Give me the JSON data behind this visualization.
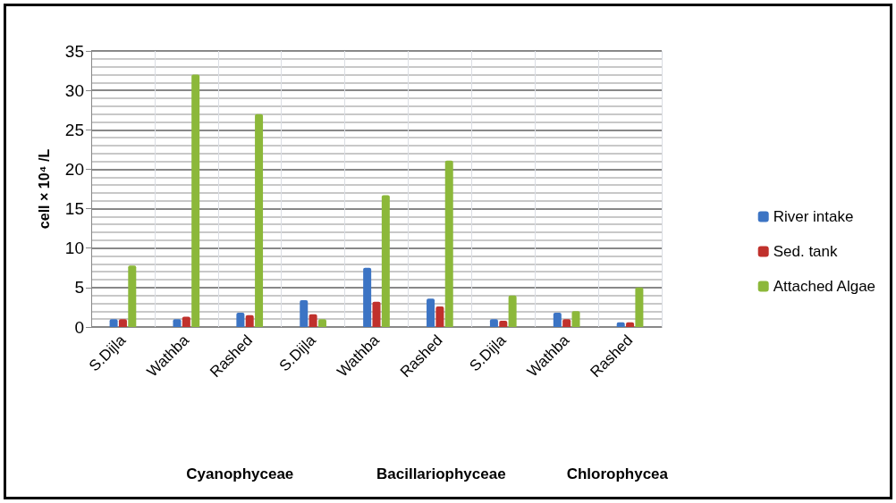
{
  "chart_data": {
    "type": "bar",
    "ylabel": "cell × 10⁴ /L",
    "categories": [
      "S.Dijla",
      "Wathba",
      "Rashed",
      "S.Dijla",
      "Wathba",
      "Rashed",
      "S.Dijla",
      "Wathba",
      "Rashed"
    ],
    "series": [
      {
        "name": "River intake",
        "color": "#3c74c4",
        "values": [
          1,
          1,
          1.8,
          3.4,
          7.5,
          3.6,
          1,
          1.8,
          0.6
        ]
      },
      {
        "name": "Sed. tank",
        "color": "#c0312c",
        "values": [
          1,
          1.3,
          1.5,
          1.6,
          3.2,
          2.6,
          0.8,
          1,
          0.6
        ]
      },
      {
        "name": "Attached Algae",
        "color": "#8cb83a",
        "values": [
          7.8,
          32,
          27,
          1,
          16.7,
          21.1,
          4,
          2,
          5
        ]
      }
    ],
    "ylim": [
      0,
      35
    ],
    "yticks": [
      0,
      5,
      10,
      15,
      20,
      25,
      30,
      35
    ],
    "grid": true,
    "legend": "right",
    "annotations": [
      "Cyanophyceae",
      "Bacillariophyceae",
      "Chlorophycea"
    ]
  }
}
